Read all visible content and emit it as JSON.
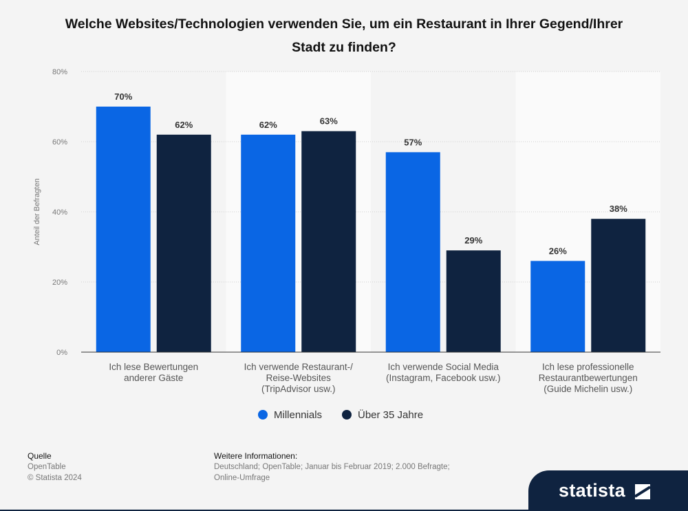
{
  "chart_data": {
    "type": "bar",
    "title": "Welche Websites/Technologien verwenden Sie, um ein Restaurant in Ihrer Gegend/Ihrer Stadt zu finden?",
    "ylabel": "Anteil der Befragten",
    "xlabel": "",
    "ylim": [
      0,
      80
    ],
    "yticks": [
      "0%",
      "20%",
      "40%",
      "60%",
      "80%"
    ],
    "grid": true,
    "legend": "bottom-center",
    "categories": [
      [
        "Ich lese Bewertungen",
        "anderer Gäste"
      ],
      [
        "Ich verwende Restaurant-/",
        "Reise-Websites",
        "(TripAdvisor usw.)"
      ],
      [
        "Ich verwende Social Media",
        "(Instagram, Facebook usw.)"
      ],
      [
        "Ich lese professionelle",
        "Restaurantbewertungen",
        "(Guide Michelin usw.)"
      ]
    ],
    "series": [
      {
        "name": "Millennials",
        "color": "#0a66e4",
        "values": [
          70,
          62,
          57,
          26
        ],
        "labels": [
          "70%",
          "62%",
          "57%",
          "26%"
        ]
      },
      {
        "name": "Über 35 Jahre",
        "color": "#0f2340",
        "values": [
          62,
          63,
          29,
          38
        ],
        "labels": [
          "62%",
          "63%",
          "29%",
          "38%"
        ]
      }
    ]
  },
  "footer": {
    "source_heading": "Quelle",
    "source_name": "OpenTable",
    "copyright": "© Statista 2024",
    "info_heading": "Weitere Informationen:",
    "info_line1": "Deutschland; OpenTable; Januar bis Februar 2019; 2.000 Befragte;",
    "info_line2": "Online-Umfrage"
  },
  "brand": {
    "name": "statista"
  }
}
